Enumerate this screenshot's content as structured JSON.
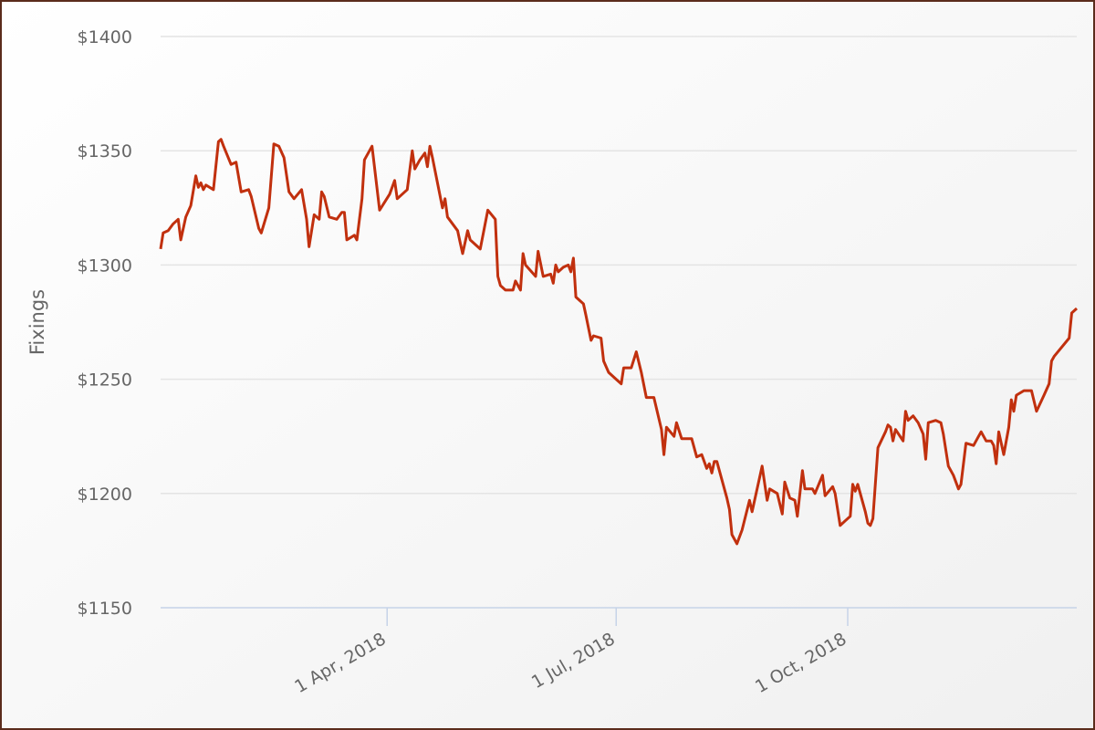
{
  "chart_data": {
    "type": "line",
    "y_label": "Fixings",
    "xlim": [
      "2018-01-01",
      "2018-12-31"
    ],
    "xticks": [
      {
        "value": "2018-04-01",
        "label": "1 Apr, 2018"
      },
      {
        "value": "2018-07-01",
        "label": "1 Jul, 2018"
      },
      {
        "value": "2018-10-01",
        "label": "1 Oct, 2018"
      }
    ],
    "ylim": [
      1150,
      1400
    ],
    "yticks": [
      {
        "value": 1150,
        "label": "$1150"
      },
      {
        "value": 1200,
        "label": "$1200"
      },
      {
        "value": 1250,
        "label": "$1250"
      },
      {
        "value": 1300,
        "label": "$1300"
      },
      {
        "value": 1350,
        "label": "$1350"
      },
      {
        "value": 1400,
        "label": "$1400"
      }
    ],
    "grid": true,
    "x": [
      "2018-01-01",
      "2018-01-02",
      "2018-01-04",
      "2018-01-06",
      "2018-01-08",
      "2018-01-09",
      "2018-01-11",
      "2018-01-13",
      "2018-01-15",
      "2018-01-16",
      "2018-01-17",
      "2018-01-18",
      "2018-01-19",
      "2018-01-22",
      "2018-01-24",
      "2018-01-25",
      "2018-01-26",
      "2018-01-29",
      "2018-01-31",
      "2018-02-02",
      "2018-02-05",
      "2018-02-06",
      "2018-02-09",
      "2018-02-10",
      "2018-02-13",
      "2018-02-15",
      "2018-02-17",
      "2018-02-19",
      "2018-02-21",
      "2018-02-23",
      "2018-02-26",
      "2018-02-28",
      "2018-03-01",
      "2018-03-03",
      "2018-03-05",
      "2018-03-06",
      "2018-03-07",
      "2018-03-09",
      "2018-03-12",
      "2018-03-14",
      "2018-03-15",
      "2018-03-16",
      "2018-03-19",
      "2018-03-20",
      "2018-03-22",
      "2018-03-23",
      "2018-03-26",
      "2018-03-29",
      "2018-04-02",
      "2018-04-04",
      "2018-04-05",
      "2018-04-09",
      "2018-04-11",
      "2018-04-12",
      "2018-04-14",
      "2018-04-16",
      "2018-04-17",
      "2018-04-18",
      "2018-04-19",
      "2018-04-23",
      "2018-04-24",
      "2018-04-25",
      "2018-04-29",
      "2018-04-30",
      "2018-05-01",
      "2018-05-03",
      "2018-05-04",
      "2018-05-08",
      "2018-05-11",
      "2018-05-14",
      "2018-05-15",
      "2018-05-16",
      "2018-05-18",
      "2018-05-21",
      "2018-05-22",
      "2018-05-24",
      "2018-05-25",
      "2018-05-26",
      "2018-05-30",
      "2018-05-31",
      "2018-06-02",
      "2018-06-05",
      "2018-06-06",
      "2018-06-07",
      "2018-06-08",
      "2018-06-10",
      "2018-06-12",
      "2018-06-13",
      "2018-06-14",
      "2018-06-15",
      "2018-06-18",
      "2018-06-19",
      "2018-06-21",
      "2018-06-22",
      "2018-06-25",
      "2018-06-26",
      "2018-06-28",
      "2018-07-01",
      "2018-07-03",
      "2018-07-04",
      "2018-07-07",
      "2018-07-09",
      "2018-07-11",
      "2018-07-13",
      "2018-07-16",
      "2018-07-19",
      "2018-07-20",
      "2018-07-21",
      "2018-07-24",
      "2018-07-25",
      "2018-07-27",
      "2018-07-31",
      "2018-08-02",
      "2018-08-04",
      "2018-08-06",
      "2018-08-07",
      "2018-08-08",
      "2018-08-09",
      "2018-08-10",
      "2018-08-14",
      "2018-08-15",
      "2018-08-16",
      "2018-08-18",
      "2018-08-20",
      "2018-08-23",
      "2018-08-24",
      "2018-08-28",
      "2018-08-30",
      "2018-08-31",
      "2018-09-03",
      "2018-09-05",
      "2018-09-06",
      "2018-09-08",
      "2018-09-10",
      "2018-09-11",
      "2018-09-13",
      "2018-09-14",
      "2018-09-17",
      "2018-09-18",
      "2018-09-21",
      "2018-09-22",
      "2018-09-25",
      "2018-09-26",
      "2018-09-28",
      "2018-09-30",
      "2018-10-02",
      "2018-10-03",
      "2018-10-04",
      "2018-10-05",
      "2018-10-08",
      "2018-10-09",
      "2018-10-10",
      "2018-10-11",
      "2018-10-13",
      "2018-10-16",
      "2018-10-17",
      "2018-10-18",
      "2018-10-19",
      "2018-10-20",
      "2018-10-23",
      "2018-10-24",
      "2018-10-25",
      "2018-10-27",
      "2018-10-29",
      "2018-10-31",
      "2018-11-01",
      "2018-11-02",
      "2018-11-05",
      "2018-11-07",
      "2018-11-08",
      "2018-11-10",
      "2018-11-12",
      "2018-11-14",
      "2018-11-15",
      "2018-11-17",
      "2018-11-20",
      "2018-11-22",
      "2018-11-23",
      "2018-11-25",
      "2018-11-27",
      "2018-11-28",
      "2018-11-29",
      "2018-11-30",
      "2018-12-02",
      "2018-12-04",
      "2018-12-05",
      "2018-12-06",
      "2018-12-07",
      "2018-12-10",
      "2018-12-13",
      "2018-12-15",
      "2018-12-18",
      "2018-12-20",
      "2018-12-21",
      "2018-12-22",
      "2018-12-28",
      "2018-12-29",
      "2018-12-31"
    ],
    "series": [
      {
        "name": "Fixings",
        "color": "#c1300e",
        "values": [
          1307,
          1314,
          1315,
          1318,
          1320,
          1311,
          1321,
          1326,
          1339,
          1334,
          1336,
          1333,
          1335,
          1333,
          1354,
          1355,
          1352,
          1344,
          1345,
          1332,
          1333,
          1330,
          1316,
          1314,
          1325,
          1353,
          1352,
          1347,
          1332,
          1329,
          1333,
          1320,
          1308,
          1322,
          1320,
          1332,
          1330,
          1321,
          1320,
          1323,
          1323,
          1311,
          1313,
          1311,
          1329,
          1346,
          1352,
          1324,
          1331,
          1337,
          1329,
          1333,
          1350,
          1342,
          1346,
          1349,
          1343,
          1352,
          1347,
          1325,
          1329,
          1321,
          1315,
          1310,
          1305,
          1315,
          1311,
          1307,
          1324,
          1320,
          1295,
          1291,
          1289,
          1289,
          1293,
          1289,
          1305,
          1300,
          1295,
          1306,
          1295,
          1296,
          1292,
          1300,
          1297,
          1299,
          1300,
          1297,
          1303,
          1286,
          1283,
          1278,
          1267,
          1269,
          1268,
          1258,
          1253,
          1250,
          1248,
          1255,
          1255,
          1262,
          1253,
          1242,
          1242,
          1228,
          1217,
          1229,
          1225,
          1231,
          1224,
          1224,
          1216,
          1217,
          1211,
          1213,
          1209,
          1214,
          1214,
          1198,
          1193,
          1182,
          1178,
          1184,
          1197,
          1192,
          1212,
          1197,
          1202,
          1200,
          1191,
          1205,
          1198,
          1197,
          1190,
          1210,
          1202,
          1202,
          1200,
          1208,
          1199,
          1203,
          1200,
          1186,
          1188,
          1190,
          1204,
          1201,
          1204,
          1192,
          1187,
          1186,
          1189,
          1220,
          1227,
          1230,
          1229,
          1223,
          1228,
          1223,
          1236,
          1232,
          1234,
          1231,
          1226,
          1215,
          1231,
          1232,
          1231,
          1226,
          1212,
          1208,
          1202,
          1204,
          1222,
          1221,
          1225,
          1227,
          1223,
          1223,
          1221,
          1213,
          1227,
          1217,
          1229,
          1241,
          1236,
          1243,
          1245,
          1245,
          1236,
          1243,
          1248,
          1258,
          1260,
          1268,
          1279,
          1281
        ]
      }
    ]
  }
}
